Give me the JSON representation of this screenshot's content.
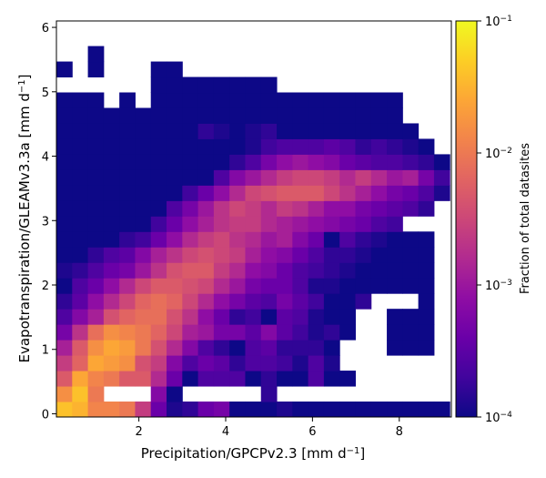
{
  "chart_data": {
    "type": "heatmap",
    "xlabel": "Precipitation/GPCPv2.3 [mm d",
    "xlabel_sup": "−1",
    "xlabel_end": "]",
    "ylabel": "Evapotranspiration/GLEAMv3.3a [mm d",
    "ylabel_sup": "−1",
    "ylabel_end": "]",
    "xlim": [
      0.1,
      9.2
    ],
    "ylim": [
      -0.05,
      6.1
    ],
    "x_ticks": [
      2,
      4,
      6,
      8
    ],
    "x_tick_labels": [
      "2",
      "4",
      "6",
      "8"
    ],
    "y_ticks": [
      0,
      1,
      2,
      3,
      4,
      5,
      6
    ],
    "y_tick_labels": [
      "0",
      "1",
      "2",
      "3",
      "4",
      "5",
      "6"
    ],
    "x_bin_start": 0.1,
    "x_bin_width": 0.3625,
    "y_bin_start": -0.05,
    "y_bin_width": 0.24,
    "value_scale": "log10 of fraction of total datasites",
    "colorbar": {
      "label": "Fraction of total datasites",
      "scale": "log",
      "range": [
        0.0001,
        0.1
      ],
      "ticks": [
        {
          "value": 0.1,
          "base": "10",
          "exp": "−1"
        },
        {
          "value": 0.01,
          "base": "10",
          "exp": "−2"
        },
        {
          "value": 0.001,
          "base": "10",
          "exp": "−3"
        },
        {
          "value": 0.0001,
          "base": "10",
          "exp": "−4"
        }
      ]
    },
    "rows": [
      [
        -1.4,
        -1.5,
        -1.9,
        -1.9,
        -2.0,
        -2.6,
        -3.4,
        -3.9,
        -3.8,
        -3.4,
        -3.3,
        -4.0,
        -4.0,
        -4.0,
        -3.9,
        -4.0,
        -4.0,
        -4.0,
        -4.0,
        -4.0,
        -4.0,
        -4.0,
        -4.0,
        -4.0,
        -4.0
      ],
      [
        -1.8,
        -1.4,
        -2.0,
        -2.4,
        -2.5,
        -2.8,
        -3.2,
        -4.0,
        -4.0,
        -3.5,
        -3.3,
        -3.3,
        -4.0,
        -3.8,
        -4.0,
        -4.0,
        -3.6,
        -3.9,
        -4.0,
        -4.0,
        -4.0,
        -4.0,
        -4.0,
        -4.0,
        -4.0
      ],
      [
        -2.3,
        -1.6,
        -1.9,
        -2.0,
        -2.3,
        -2.3,
        -2.8,
        -3.4,
        -4.0,
        -3.6,
        -3.6,
        -3.6,
        -4.0,
        -3.8,
        -4.0,
        -4.0,
        -3.6,
        -4.0,
        -4.0,
        -4.0,
        -4.0,
        -4.0,
        -4.0,
        -4.0,
        -4.0
      ],
      [
        -2.6,
        -2.2,
        -1.6,
        -1.7,
        -1.8,
        -2.4,
        -2.6,
        -3.2,
        -3.6,
        -3.4,
        -3.5,
        -3.8,
        -3.6,
        -3.6,
        -3.7,
        -3.9,
        -3.6,
        -3.9,
        -4.0,
        -4.0,
        -4.0,
        -4.0,
        -4.0,
        -4.0,
        -4.0
      ],
      [
        -2.9,
        -2.3,
        -1.8,
        -1.6,
        -1.7,
        -2.0,
        -2.4,
        -2.8,
        -3.2,
        -3.6,
        -3.8,
        -4.0,
        -3.6,
        -3.5,
        -3.8,
        -3.8,
        -3.8,
        -4.0,
        -4.0,
        -4.0,
        -4.0,
        -4.0,
        -4.0,
        -4.0,
        -4.0
      ],
      [
        -3.3,
        -2.7,
        -2.1,
        -1.8,
        -1.9,
        -2.0,
        -2.2,
        -2.5,
        -2.9,
        -3.0,
        -3.3,
        -3.3,
        -3.5,
        -3.2,
        -3.5,
        -3.7,
        -3.9,
        -3.8,
        -4.0,
        -4.0,
        -4.0,
        -4.0,
        -4.0,
        -4.0,
        -4.0
      ],
      [
        -3.6,
        -3.2,
        -2.9,
        -2.4,
        -2.2,
        -2.1,
        -2.1,
        -2.4,
        -2.7,
        -3.1,
        -3.4,
        -3.8,
        -3.7,
        -4.0,
        -3.5,
        -3.6,
        -3.9,
        -4.0,
        -4.0,
        -4.0,
        -4.0,
        -4.0,
        -4.0,
        -4.0,
        -4.0
      ],
      [
        -3.8,
        -3.5,
        -3.1,
        -2.8,
        -2.5,
        -2.2,
        -2.1,
        -2.2,
        -2.5,
        -2.8,
        -3.1,
        -3.3,
        -3.5,
        -3.6,
        -3.3,
        -3.5,
        -3.7,
        -4.0,
        -4.0,
        -3.8,
        -4.0,
        -4.0,
        -4.0,
        -4.0,
        -4.0
      ],
      [
        -4.0,
        -3.6,
        -3.4,
        -3.1,
        -2.8,
        -2.5,
        -2.3,
        -2.3,
        -2.4,
        -2.5,
        -2.8,
        -3.0,
        -3.3,
        -3.4,
        -3.4,
        -3.6,
        -3.9,
        -3.9,
        -4.0,
        -4.0,
        -4.0,
        -4.0,
        -4.0,
        -4.0,
        -4.0
      ],
      [
        -3.9,
        -3.8,
        -3.6,
        -3.4,
        -3.3,
        -3.0,
        -2.7,
        -2.4,
        -2.3,
        -2.3,
        -2.6,
        -2.8,
        -3.1,
        -3.2,
        -3.4,
        -3.6,
        -3.7,
        -3.8,
        -3.9,
        -4.0,
        -4.0,
        -4.0,
        -4.0,
        -4.0,
        -4.0
      ],
      [
        -4.0,
        -4.0,
        -3.8,
        -3.6,
        -3.5,
        -3.2,
        -2.9,
        -2.7,
        -2.5,
        -2.4,
        -2.5,
        -2.6,
        -2.9,
        -3.1,
        -3.2,
        -3.4,
        -3.6,
        -3.8,
        -3.8,
        -3.9,
        -4.0,
        -4.0,
        -4.0,
        -4.0,
        -4.0
      ],
      [
        -4.0,
        -4.0,
        -4.0,
        -4.0,
        -3.8,
        -3.7,
        -3.4,
        -3.1,
        -2.8,
        -2.6,
        -2.5,
        -2.7,
        -2.8,
        -3.0,
        -2.9,
        -3.2,
        -3.4,
        -4.0,
        -3.6,
        -3.8,
        -3.9,
        -4.0,
        -4.0,
        -4.0,
        -4.0
      ],
      [
        -4.0,
        -4.0,
        -4.0,
        -4.0,
        -4.0,
        -4.0,
        -3.7,
        -3.4,
        -3.1,
        -2.9,
        -2.7,
        -2.6,
        -2.6,
        -2.8,
        -2.9,
        -3.0,
        -3.1,
        -3.2,
        -3.3,
        -3.4,
        -3.6,
        -3.7,
        -3.8,
        -4.0,
        -4.0
      ],
      [
        -4.0,
        -4.0,
        -4.0,
        -4.0,
        -4.0,
        -4.0,
        -4.0,
        -3.6,
        -3.3,
        -3.0,
        -2.7,
        -2.5,
        -2.6,
        -2.8,
        -2.6,
        -2.7,
        -2.9,
        -3.1,
        -3.1,
        -3.3,
        -3.4,
        -3.5,
        -3.6,
        -3.8,
        -4.0
      ],
      [
        -4.0,
        -4.0,
        -4.0,
        -4.0,
        -4.0,
        -4.0,
        -4.0,
        -4.0,
        -3.7,
        -3.4,
        -3.1,
        -2.8,
        -2.5,
        -2.4,
        -2.3,
        -2.3,
        -2.3,
        -2.5,
        -2.7,
        -2.9,
        -3.1,
        -3.3,
        -3.4,
        -3.6,
        -3.9
      ],
      [
        -4.0,
        -4.0,
        -4.0,
        -4.0,
        -4.0,
        -4.0,
        -4.0,
        -4.0,
        -4.0,
        -4.0,
        -3.6,
        -3.2,
        -3.0,
        -2.8,
        -2.6,
        -2.5,
        -2.5,
        -2.6,
        -2.8,
        -2.6,
        -2.8,
        -3.0,
        -2.9,
        -3.3,
        -3.7
      ],
      [
        -4.0,
        -4.0,
        -4.0,
        -4.0,
        -4.0,
        -4.0,
        -4.0,
        -4.0,
        -4.0,
        -4.0,
        -4.0,
        -3.8,
        -3.6,
        -3.3,
        -3.1,
        -3.0,
        -3.1,
        -3.2,
        -3.4,
        -3.5,
        -3.6,
        -3.6,
        -3.7,
        -3.8,
        -4.0
      ],
      [
        -4.0,
        -4.0,
        -4.0,
        -4.0,
        -4.0,
        -4.0,
        -4.0,
        -4.0,
        -4.0,
        -4.0,
        -4.0,
        -4.0,
        -3.9,
        -3.7,
        -3.6,
        -3.6,
        -3.6,
        -3.5,
        -3.6,
        -3.8,
        -3.7,
        -3.8,
        -3.9,
        -4.0,
        null
      ],
      [
        -4.0,
        -4.0,
        -4.0,
        -4.0,
        -4.0,
        -4.0,
        -4.0,
        -4.0,
        -4.0,
        -3.8,
        -3.9,
        -4.0,
        -3.9,
        -3.8,
        -4.0,
        -4.0,
        -4.0,
        -4.0,
        -4.0,
        -4.0,
        -4.0,
        -4.0,
        -4.0,
        null,
        null
      ],
      [
        -4.0,
        -4.0,
        -4.0,
        -4.0,
        -4.0,
        -4.0,
        -4.0,
        -4.0,
        -4.0,
        -4.0,
        -4.0,
        -4.0,
        -4.0,
        -4.0,
        -4.0,
        -4.0,
        -4.0,
        -4.0,
        -4.0,
        -4.0,
        -4.0,
        -4.0,
        null,
        null,
        null
      ],
      [
        -4.0,
        -4.0,
        -4.0,
        null,
        -4.0,
        null,
        -4.0,
        -4.0,
        -4.0,
        -4.0,
        -4.0,
        -4.0,
        -4.0,
        -4.0,
        -4.0,
        -4.0,
        -4.0,
        -4.0,
        -4.0,
        -4.0,
        -4.0,
        -4.0,
        null,
        null,
        null
      ],
      [
        null,
        null,
        null,
        null,
        null,
        null,
        -4.0,
        -4.0,
        -4.0,
        -4.0,
        -4.0,
        -4.0,
        -4.0,
        -4.0,
        -4.0,
        null,
        -4.0,
        null,
        null,
        null,
        null,
        null,
        null,
        null,
        null
      ],
      [
        -4.0,
        null,
        -4.0,
        null,
        null,
        null,
        -4.0,
        -4.0,
        null,
        null,
        null,
        null,
        null,
        null,
        null,
        null,
        null,
        null,
        null,
        null,
        null,
        null,
        null,
        null,
        null
      ],
      [
        null,
        null,
        -4.0,
        null,
        null,
        null,
        null,
        null,
        null,
        null,
        null,
        null,
        null,
        null,
        null,
        null,
        null,
        null,
        null,
        null,
        null,
        null,
        null,
        null,
        null
      ],
      [
        null,
        null,
        null,
        null,
        null,
        null,
        null,
        null,
        null,
        null,
        null,
        null,
        null,
        null,
        null,
        null,
        null,
        null,
        null,
        null,
        null,
        null,
        null,
        null,
        null
      ]
    ],
    "empty_overrides": [
      [
        1,
        3
      ],
      [
        1,
        4
      ],
      [
        1,
        5
      ],
      [
        1,
        8
      ],
      [
        1,
        9
      ],
      [
        1,
        10
      ],
      [
        1,
        11
      ],
      [
        1,
        12
      ],
      [
        1,
        14
      ],
      [
        1,
        15
      ],
      [
        1,
        16
      ],
      [
        1,
        17
      ],
      [
        1,
        18
      ],
      [
        1,
        19
      ],
      [
        1,
        20
      ],
      [
        1,
        21
      ],
      [
        1,
        22
      ],
      [
        1,
        23
      ],
      [
        1,
        24
      ],
      [
        2,
        19
      ],
      [
        2,
        20
      ],
      [
        2,
        21
      ],
      [
        2,
        22
      ],
      [
        2,
        23
      ],
      [
        2,
        24
      ],
      [
        3,
        18
      ],
      [
        3,
        19
      ],
      [
        3,
        20
      ],
      [
        3,
        21
      ],
      [
        3,
        22
      ],
      [
        3,
        23
      ],
      [
        3,
        24
      ],
      [
        4,
        18
      ],
      [
        4,
        19
      ],
      [
        4,
        20
      ],
      [
        4,
        24
      ],
      [
        5,
        19
      ],
      [
        5,
        20
      ],
      [
        5,
        24
      ],
      [
        6,
        19
      ],
      [
        6,
        20
      ],
      [
        6,
        24
      ],
      [
        7,
        20
      ],
      [
        7,
        21
      ],
      [
        7,
        22
      ],
      [
        7,
        24
      ],
      [
        8,
        24
      ],
      [
        9,
        24
      ],
      [
        10,
        24
      ],
      [
        11,
        24
      ],
      [
        12,
        22
      ],
      [
        12,
        23
      ],
      [
        12,
        24
      ],
      [
        13,
        24
      ],
      [
        18,
        23
      ],
      [
        18,
        24
      ],
      [
        19,
        22
      ],
      [
        19,
        23
      ],
      [
        19,
        24
      ],
      [
        20,
        22
      ],
      [
        20,
        23
      ],
      [
        20,
        24
      ],
      [
        21,
        14
      ],
      [
        21,
        16
      ],
      [
        21,
        17
      ],
      [
        21,
        18
      ],
      [
        21,
        19
      ],
      [
        21,
        20
      ],
      [
        21,
        21
      ],
      [
        21,
        22
      ],
      [
        21,
        23
      ],
      [
        21,
        24
      ]
    ]
  }
}
